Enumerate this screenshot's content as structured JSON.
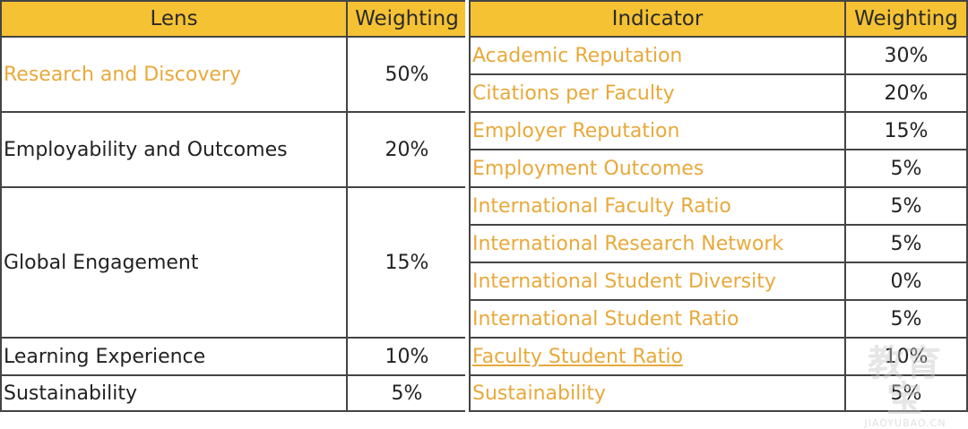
{
  "colors": {
    "header_bg": "#f5c233",
    "indicator_text": "#e8a93b",
    "border": "#444444"
  },
  "left_table": {
    "headers": {
      "lens": "Lens",
      "weighting": "Weighting"
    },
    "rows": [
      {
        "lens": "Research and Discovery",
        "weighting": "50%"
      },
      {
        "lens": "Employability and Outcomes",
        "weighting": "20%"
      },
      {
        "lens": "Global Engagement",
        "weighting": "15%"
      },
      {
        "lens": "Learning Experience",
        "weighting": "10%"
      },
      {
        "lens": "Sustainability",
        "weighting": "5%"
      }
    ]
  },
  "right_table": {
    "headers": {
      "indicator": "Indicator",
      "weighting": "Weighting"
    },
    "rows": [
      {
        "indicator": "Academic Reputation",
        "weighting": "30%"
      },
      {
        "indicator": "Citations per Faculty",
        "weighting": "20%"
      },
      {
        "indicator": "Employer Reputation",
        "weighting": "15%"
      },
      {
        "indicator": "Employment Outcomes",
        "weighting": "5%"
      },
      {
        "indicator": "International Faculty Ratio",
        "weighting": "5%"
      },
      {
        "indicator": "International Research Network",
        "weighting": "5%"
      },
      {
        "indicator": "International Student Diversity",
        "weighting": "0%"
      },
      {
        "indicator": "International Student Ratio",
        "weighting": "5%"
      },
      {
        "indicator": "Faculty Student Ratio",
        "weighting": "10%"
      },
      {
        "indicator": "Sustainability",
        "weighting": "5%"
      }
    ]
  },
  "watermark": {
    "text": "教育宝",
    "url_text": "JIAOYUBAO.CN"
  }
}
